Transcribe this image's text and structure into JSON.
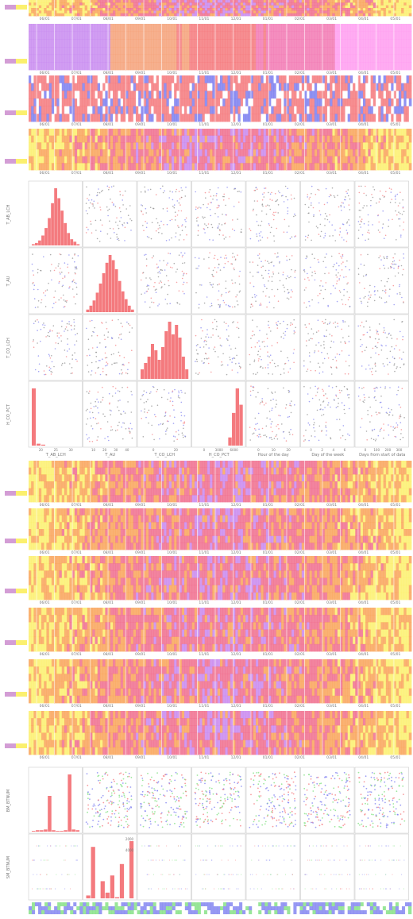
{
  "colors": {
    "red": "#f47a7e",
    "blue": "#7d7ff0",
    "green": "#7fe07f",
    "gray": "#8a8a8a",
    "heat_low": "#fbf06e",
    "heat_mid": "#f9a55a",
    "heat_high": "#f06e8e",
    "heat_top": "#c988ef",
    "day_colors": [
      "#f27ab4",
      "#ff9ef0",
      "#c98cf0",
      "#f4a27a",
      "#f47a7e"
    ]
  },
  "date_ticks": [
    "06/01",
    "07/01",
    "08/01",
    "09/01",
    "10/01",
    "11/01",
    "12/01",
    "01/01",
    "02/01",
    "03/01",
    "04/01",
    "05/01"
  ],
  "heatmap_strips": [
    {
      "kind": "heat",
      "seed": 3
    },
    {
      "kind": "day",
      "seed": 5
    },
    {
      "kind": "mixed",
      "seed": 7
    },
    {
      "kind": "heat",
      "seed": 11
    },
    {
      "kind": "heat",
      "seed": 13
    },
    {
      "kind": "heat",
      "seed": 17
    },
    {
      "kind": "heat",
      "seed": 19
    },
    {
      "kind": "heat",
      "seed": 23
    },
    {
      "kind": "heat",
      "seed": 29
    },
    {
      "kind": "heat",
      "seed": 31
    }
  ],
  "pairplot": {
    "columns": [
      "T_AB_LCH",
      "T_AU",
      "T_CO_LCH",
      "H_CO_PCT",
      "Hour of the day",
      "Day of the week",
      "Days from start of data"
    ],
    "row_labels": [
      "T_AB_LCH",
      "T_AU",
      "T_CO_LCH",
      "H_CO_PCT"
    ],
    "axis_ticks": {
      "T_AB_LCH": [
        "20",
        "25",
        "30"
      ],
      "T_AU": [
        "10",
        "20",
        "30",
        "40"
      ],
      "T_CO_LCH": [
        "0",
        "20"
      ],
      "H_CO_PCT": [
        "0",
        "3000",
        "6000"
      ],
      "Hour of the day": [
        "0",
        "10",
        "20"
      ],
      "Day of the week": [
        "0",
        "2",
        "4",
        "6"
      ],
      "Days from start of data": [
        "0",
        "100",
        "200",
        "300"
      ]
    },
    "diagonal_histograms": [
      {
        "variable": "T_AB_LCH",
        "values": [
          1,
          2,
          4,
          8,
          14,
          22,
          34,
          46,
          38,
          28,
          18,
          10,
          5,
          3,
          1
        ]
      },
      {
        "variable": "T_AU",
        "values": [
          2,
          5,
          9,
          15,
          22,
          30,
          38,
          44,
          40,
          33,
          24,
          16,
          10,
          5,
          2
        ]
      },
      {
        "variable": "T_CO_LCH",
        "values": [
          6,
          10,
          14,
          22,
          18,
          12,
          20,
          30,
          36,
          28,
          34,
          26,
          14,
          6
        ]
      },
      {
        "variable": "H_CO_PCT",
        "values": [
          0,
          0,
          0,
          0,
          0,
          0,
          0,
          0,
          0,
          2,
          8,
          14,
          10
        ]
      }
    ],
    "row4_first_panel_histogram": [
      60,
      2,
      1
    ]
  },
  "bottom_pairplot": {
    "row_labels": [
      "BM_BTNUM",
      "SM_BTNUM"
    ],
    "hist_a": [
      1,
      2,
      2,
      3,
      50,
      2,
      1,
      1,
      2,
      80,
      3,
      2
    ],
    "hist_b_ticks": [
      "2000",
      "4000"
    ],
    "hist_b": [
      5,
      90,
      0,
      30,
      10,
      40,
      2,
      60,
      0,
      100
    ]
  }
}
